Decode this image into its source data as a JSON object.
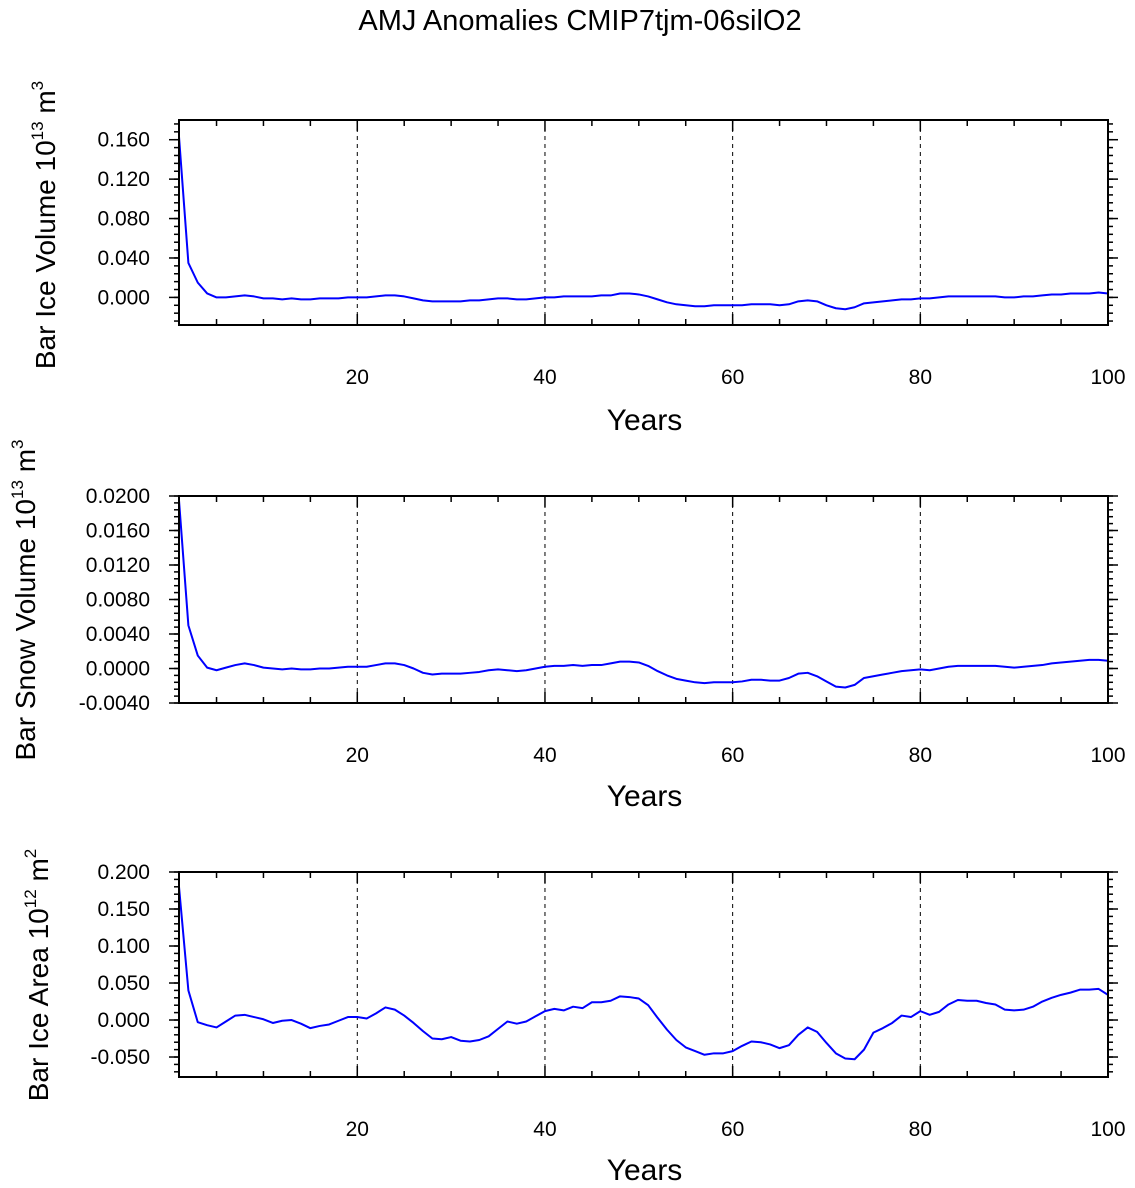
{
  "chart_data": [
    {
      "type": "line",
      "title": "AMJ Anomalies CMIP7tjm-06silO2",
      "xlabel": "Years",
      "ylabel": "Bar Ice Volume 10",
      "ylabel_exp": "13",
      "ylabel_unit": " m",
      "ylabel_unit_exp": "3",
      "xlim": [
        1,
        100
      ],
      "ylim": [
        -0.028,
        0.18
      ],
      "y_ticks": [
        0.0,
        0.04,
        0.08,
        0.12,
        0.16
      ],
      "y_tick_labels": [
        "0.000",
        "0.040",
        "0.080",
        "0.120",
        "0.160"
      ],
      "y_minor_step": 0.008,
      "x_ticks": [
        20,
        40,
        60,
        80,
        100
      ],
      "x_tick_labels": [
        "20",
        "40",
        "60",
        "80",
        "100"
      ],
      "grid_x": [
        20,
        40,
        60,
        80
      ],
      "color": "#0000ff",
      "x_start": 1,
      "values": [
        0.163,
        0.035,
        0.015,
        0.004,
        0.0,
        0.0,
        0.001,
        0.002,
        0.001,
        -0.001,
        -0.001,
        -0.002,
        -0.001,
        -0.002,
        -0.002,
        -0.001,
        -0.001,
        -0.001,
        0.0,
        0.0,
        0.0,
        0.001,
        0.002,
        0.002,
        0.001,
        -0.001,
        -0.003,
        -0.004,
        -0.004,
        -0.004,
        -0.004,
        -0.003,
        -0.003,
        -0.002,
        -0.001,
        -0.001,
        -0.002,
        -0.002,
        -0.001,
        0.0,
        0.0,
        0.001,
        0.001,
        0.001,
        0.001,
        0.002,
        0.002,
        0.004,
        0.004,
        0.003,
        0.001,
        -0.002,
        -0.005,
        -0.007,
        -0.008,
        -0.009,
        -0.009,
        -0.008,
        -0.008,
        -0.008,
        -0.008,
        -0.007,
        -0.007,
        -0.007,
        -0.008,
        -0.007,
        -0.004,
        -0.003,
        -0.004,
        -0.008,
        -0.011,
        -0.012,
        -0.01,
        -0.006,
        -0.005,
        -0.004,
        -0.003,
        -0.002,
        -0.002,
        -0.001,
        -0.001,
        0.0,
        0.001,
        0.001,
        0.001,
        0.001,
        0.001,
        0.001,
        0.0,
        0.0,
        0.001,
        0.001,
        0.002,
        0.003,
        0.003,
        0.004,
        0.004,
        0.004,
        0.005,
        0.004
      ]
    },
    {
      "type": "line",
      "xlabel": "Years",
      "ylabel": "Bar Snow Volume 10",
      "ylabel_exp": "13",
      "ylabel_unit": " m",
      "ylabel_unit_exp": "3",
      "xlim": [
        1,
        100
      ],
      "ylim": [
        -0.004,
        0.02
      ],
      "y_ticks": [
        -0.004,
        0.0,
        0.004,
        0.008,
        0.012,
        0.016,
        0.02
      ],
      "y_tick_labels": [
        "-0.0040",
        "0.0000",
        "0.0040",
        "0.0080",
        "0.0120",
        "0.0160",
        "0.0200"
      ],
      "y_minor_step": 0.0008,
      "x_ticks": [
        20,
        40,
        60,
        80,
        100
      ],
      "x_tick_labels": [
        "20",
        "40",
        "60",
        "80",
        "100"
      ],
      "grid_x": [
        20,
        40,
        60,
        80
      ],
      "color": "#0000ff",
      "x_start": 1,
      "values": [
        0.0195,
        0.005,
        0.0015,
        0.0001,
        -0.0002,
        0.0001,
        0.0004,
        0.0006,
        0.0004,
        0.0001,
        0.0,
        -0.0001,
        0.0,
        -0.0001,
        -0.0001,
        0.0,
        0.0,
        0.0001,
        0.0002,
        0.0002,
        0.0002,
        0.0004,
        0.0006,
        0.0006,
        0.0004,
        0.0,
        -0.0005,
        -0.0007,
        -0.0006,
        -0.0006,
        -0.0006,
        -0.0005,
        -0.0004,
        -0.0002,
        -0.0001,
        -0.0002,
        -0.0003,
        -0.0002,
        0.0,
        0.0002,
        0.0003,
        0.0003,
        0.0004,
        0.0003,
        0.0004,
        0.0004,
        0.0006,
        0.0008,
        0.0008,
        0.0007,
        0.0003,
        -0.0003,
        -0.0008,
        -0.0012,
        -0.0014,
        -0.0016,
        -0.0017,
        -0.0016,
        -0.0016,
        -0.0016,
        -0.0015,
        -0.0013,
        -0.0013,
        -0.0014,
        -0.0014,
        -0.0011,
        -0.0006,
        -0.0005,
        -0.0009,
        -0.0015,
        -0.0021,
        -0.0022,
        -0.0019,
        -0.0011,
        -0.0009,
        -0.0007,
        -0.0005,
        -0.0003,
        -0.0002,
        -0.0001,
        -0.0002,
        0.0,
        0.0002,
        0.0003,
        0.0003,
        0.0003,
        0.0003,
        0.0003,
        0.0002,
        0.0001,
        0.0002,
        0.0003,
        0.0004,
        0.0006,
        0.0007,
        0.0008,
        0.0009,
        0.001,
        0.001,
        0.0009
      ]
    },
    {
      "type": "line",
      "xlabel": "Years",
      "ylabel": "Bar Ice Area 10",
      "ylabel_exp": "12",
      "ylabel_unit": " m",
      "ylabel_unit_exp": "2",
      "xlim": [
        1,
        100
      ],
      "ylim": [
        -0.077,
        0.2
      ],
      "y_ticks": [
        -0.05,
        0.0,
        0.05,
        0.1,
        0.15,
        0.2
      ],
      "y_tick_labels": [
        "-0.050",
        "0.000",
        "0.050",
        "0.100",
        "0.150",
        "0.200"
      ],
      "y_minor_step": 0.01,
      "x_ticks": [
        20,
        40,
        60,
        80,
        100
      ],
      "x_tick_labels": [
        "20",
        "40",
        "60",
        "80",
        "100"
      ],
      "grid_x": [
        20,
        40,
        60,
        80
      ],
      "color": "#0000ff",
      "x_start": 1,
      "values": [
        0.18,
        0.04,
        -0.003,
        -0.007,
        -0.01,
        -0.002,
        0.006,
        0.007,
        0.004,
        0.001,
        -0.004,
        -0.001,
        0.0,
        -0.005,
        -0.011,
        -0.008,
        -0.006,
        -0.001,
        0.004,
        0.004,
        0.002,
        0.009,
        0.017,
        0.014,
        0.006,
        -0.004,
        -0.015,
        -0.025,
        -0.026,
        -0.023,
        -0.028,
        -0.029,
        -0.027,
        -0.022,
        -0.012,
        -0.002,
        -0.005,
        -0.002,
        0.005,
        0.012,
        0.015,
        0.013,
        0.018,
        0.016,
        0.024,
        0.024,
        0.026,
        0.032,
        0.031,
        0.029,
        0.02,
        0.003,
        -0.013,
        -0.027,
        -0.037,
        -0.042,
        -0.047,
        -0.045,
        -0.045,
        -0.042,
        -0.035,
        -0.029,
        -0.03,
        -0.033,
        -0.038,
        -0.034,
        -0.02,
        -0.01,
        -0.016,
        -0.031,
        -0.045,
        -0.052,
        -0.053,
        -0.04,
        -0.017,
        -0.011,
        -0.004,
        0.006,
        0.004,
        0.012,
        0.007,
        0.011,
        0.021,
        0.027,
        0.026,
        0.026,
        0.023,
        0.021,
        0.014,
        0.013,
        0.014,
        0.018,
        0.025,
        0.03,
        0.034,
        0.037,
        0.041,
        0.041,
        0.042,
        0.034
      ]
    }
  ]
}
